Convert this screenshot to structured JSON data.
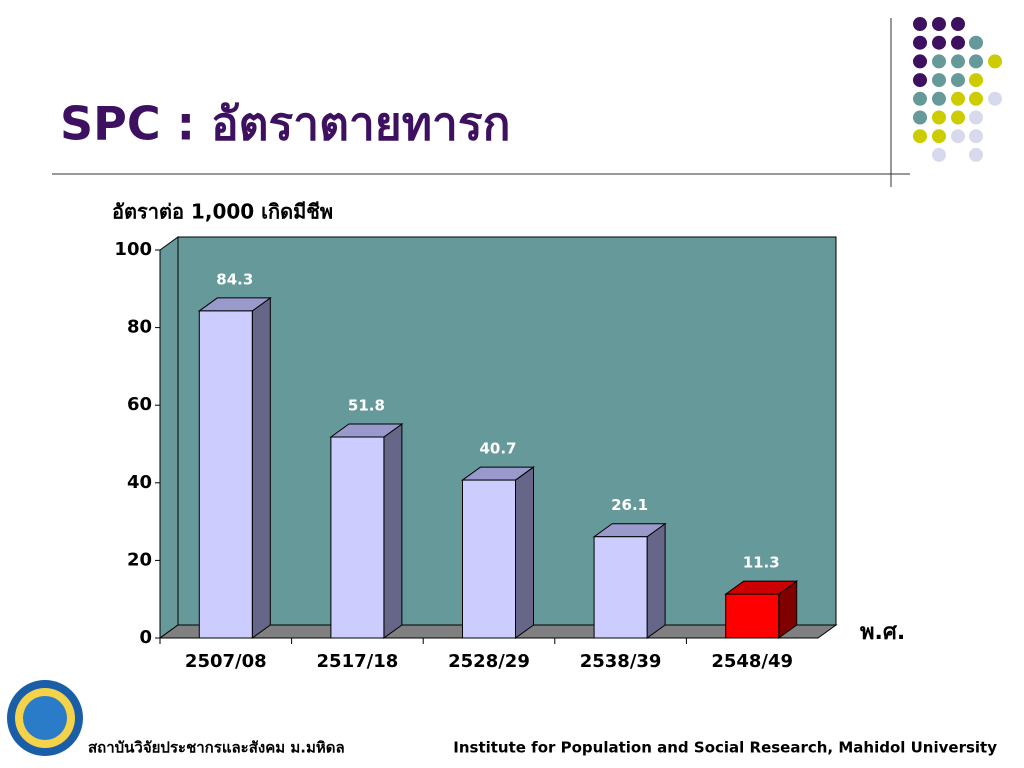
{
  "chart_data": {
    "type": "bar3d",
    "title": "SPC : อัตราตายทารก",
    "y_label": "อัตราต่อ 1,000 เกิดมีชีพ",
    "x_label": "พ.ศ.",
    "categories": [
      "2507/08",
      "2517/18",
      "2528/29",
      "2538/39",
      "2548/49"
    ],
    "values": [
      84.3,
      51.8,
      40.7,
      26.1,
      11.3
    ],
    "colors": [
      "#ccccff",
      "#ccccff",
      "#ccccff",
      "#ccccff",
      "#ff0000"
    ],
    "ylim": [
      0,
      100
    ],
    "yticks": [
      0,
      20,
      40,
      60,
      80,
      100
    ],
    "wall_color": "#669999"
  },
  "footer": {
    "left": "สถาบันวิจัยประชากรและสังคม ม.มหิดล",
    "right": "Institute for Population and Social Research, Mahidol University"
  }
}
